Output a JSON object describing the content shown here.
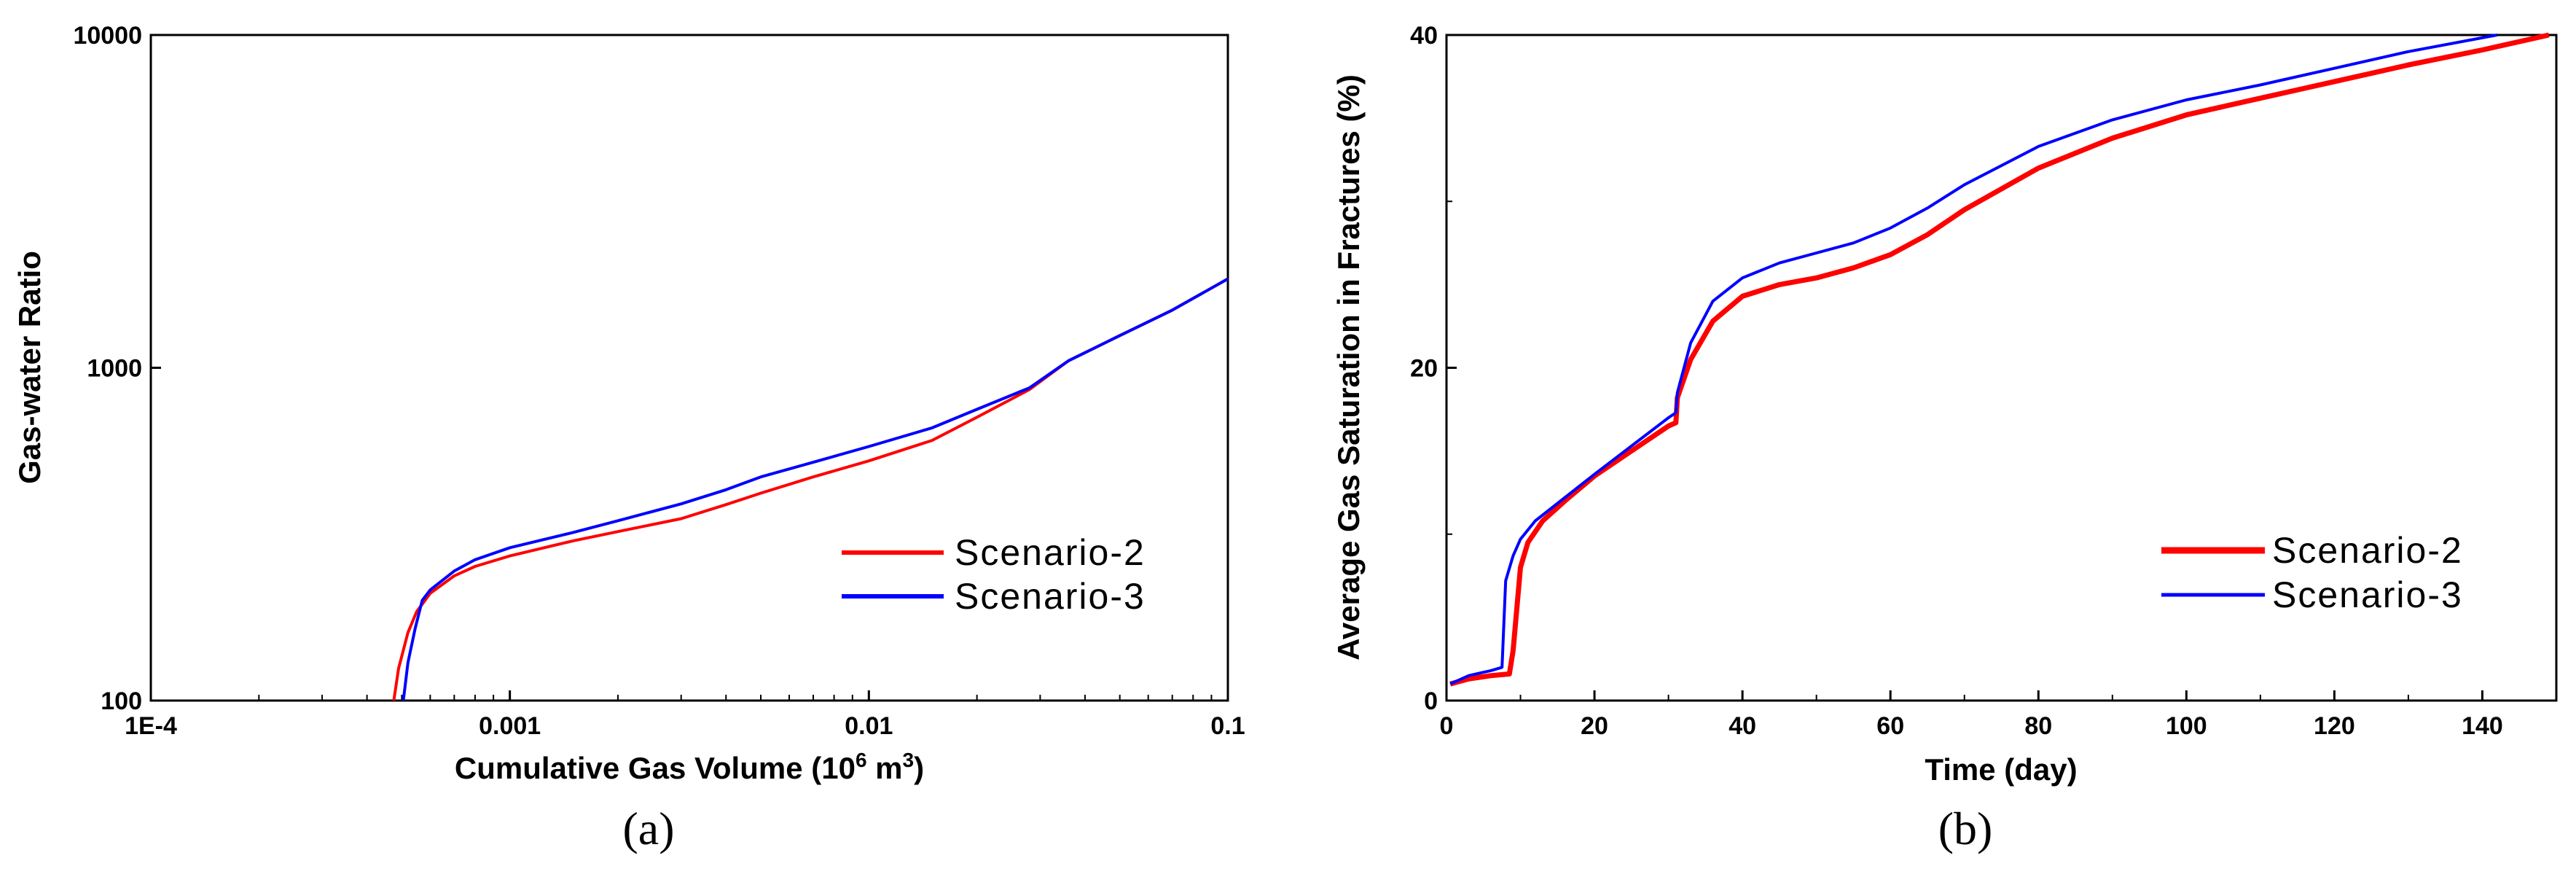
{
  "figure": {
    "panel_labels": [
      "(a)",
      "(b)"
    ]
  },
  "chart_data": [
    {
      "type": "line",
      "xscale": "log",
      "yscale": "log",
      "title": "",
      "xlabel_main": "Cumulative Gas Volume (10",
      "xlabel_sup": "6",
      "xlabel_tail": " m",
      "xlabel_sup2": "3",
      "xlabel_close": ")",
      "ylabel": "Gas-water Ratio",
      "xlim": [
        0.0001,
        0.1
      ],
      "ylim": [
        100,
        10000
      ],
      "xticks": [
        0.0001,
        0.001,
        0.01,
        0.1
      ],
      "xtick_labels": [
        "1E-4",
        "0.001",
        "0.01",
        "0.1"
      ],
      "yticks": [
        100,
        1000,
        10000
      ],
      "ytick_labels": [
        "100",
        "1000",
        "10000"
      ],
      "legend_position": "bottom-right",
      "series": [
        {
          "name": "Scenario-2",
          "color": "#ff0000",
          "points": [
            [
              0.000475,
              100
            ],
            [
              0.00049,
              125
            ],
            [
              0.00052,
              160
            ],
            [
              0.00055,
              185
            ],
            [
              0.0006,
              210
            ],
            [
              0.0007,
              237
            ],
            [
              0.0008,
              253
            ],
            [
              0.001,
              272
            ],
            [
              0.0015,
              302
            ],
            [
              0.002,
              322
            ],
            [
              0.003,
              352
            ],
            [
              0.004,
              388
            ],
            [
              0.005,
              420
            ],
            [
              0.007,
              470
            ],
            [
              0.01,
              525
            ],
            [
              0.015,
              605
            ],
            [
              0.02,
              710
            ],
            [
              0.028,
              860
            ],
            [
              0.036,
              1050
            ],
            [
              0.05,
              1250
            ],
            [
              0.07,
              1490
            ],
            [
              0.1,
              1850
            ]
          ]
        },
        {
          "name": "Scenario-3",
          "color": "#0000ff",
          "points": [
            [
              0.000505,
              100
            ],
            [
              0.00052,
              130
            ],
            [
              0.000545,
              165
            ],
            [
              0.00057,
              200
            ],
            [
              0.0006,
              215
            ],
            [
              0.0007,
              245
            ],
            [
              0.0008,
              265
            ],
            [
              0.001,
              288
            ],
            [
              0.0015,
              320
            ],
            [
              0.002,
              347
            ],
            [
              0.003,
              390
            ],
            [
              0.004,
              430
            ],
            [
              0.005,
              470
            ],
            [
              0.007,
              520
            ],
            [
              0.01,
              580
            ],
            [
              0.015,
              660
            ],
            [
              0.02,
              750
            ],
            [
              0.028,
              870
            ],
            [
              0.036,
              1050
            ],
            [
              0.05,
              1250
            ],
            [
              0.07,
              1490
            ],
            [
              0.1,
              1850
            ]
          ]
        }
      ]
    },
    {
      "type": "line",
      "title": "",
      "xlabel": "Time (day)",
      "ylabel": "Average Gas Saturation in Fractures (%)",
      "xlim": [
        0,
        150
      ],
      "ylim": [
        0,
        40
      ],
      "xticks": [
        0,
        20,
        40,
        60,
        80,
        100,
        120,
        140
      ],
      "xtick_labels": [
        "0",
        "20",
        "40",
        "60",
        "80",
        "100",
        "120",
        "140"
      ],
      "yticks": [
        0,
        20,
        40
      ],
      "ytick_labels": [
        "0",
        "20",
        "40"
      ],
      "legend_position": "bottom-right",
      "series": [
        {
          "name": "Scenario-2",
          "color": "#ff0000",
          "points": [
            [
              0.5,
              1.0
            ],
            [
              3,
              1.3
            ],
            [
              6,
              1.5
            ],
            [
              8.5,
              1.6
            ],
            [
              9,
              3.0
            ],
            [
              10,
              8.0
            ],
            [
              11,
              9.5
            ],
            [
              13,
              10.8
            ],
            [
              16,
              12.0
            ],
            [
              20,
              13.5
            ],
            [
              25,
              15.0
            ],
            [
              30,
              16.5
            ],
            [
              31,
              16.7
            ],
            [
              31.2,
              18.2
            ],
            [
              33,
              20.5
            ],
            [
              36,
              22.8
            ],
            [
              40,
              24.3
            ],
            [
              45,
              25.0
            ],
            [
              50,
              25.4
            ],
            [
              55,
              26.0
            ],
            [
              60,
              26.8
            ],
            [
              65,
              28.0
            ],
            [
              70,
              29.5
            ],
            [
              80,
              32.0
            ],
            [
              90,
              33.8
            ],
            [
              100,
              35.2
            ],
            [
              110,
              36.2
            ],
            [
              120,
              37.2
            ],
            [
              130,
              38.2
            ],
            [
              140,
              39.1
            ],
            [
              149,
              40.0
            ]
          ]
        },
        {
          "name": "Scenario-3",
          "color": "#0000ff",
          "points": [
            [
              0.5,
              1.0
            ],
            [
              3,
              1.5
            ],
            [
              6,
              1.8
            ],
            [
              7.5,
              2.0
            ],
            [
              8,
              7.2
            ],
            [
              9,
              8.7
            ],
            [
              10,
              9.7
            ],
            [
              12,
              10.8
            ],
            [
              16,
              12.2
            ],
            [
              20,
              13.6
            ],
            [
              25,
              15.3
            ],
            [
              30,
              17.0
            ],
            [
              31,
              17.3
            ],
            [
              31.2,
              18.5
            ],
            [
              33,
              21.5
            ],
            [
              36,
              24.0
            ],
            [
              40,
              25.4
            ],
            [
              45,
              26.3
            ],
            [
              50,
              26.9
            ],
            [
              55,
              27.5
            ],
            [
              60,
              28.4
            ],
            [
              65,
              29.6
            ],
            [
              70,
              31.0
            ],
            [
              80,
              33.3
            ],
            [
              90,
              34.9
            ],
            [
              100,
              36.1
            ],
            [
              110,
              37.0
            ],
            [
              120,
              38.0
            ],
            [
              130,
              39.0
            ],
            [
              142,
              40.0
            ]
          ]
        }
      ]
    }
  ]
}
